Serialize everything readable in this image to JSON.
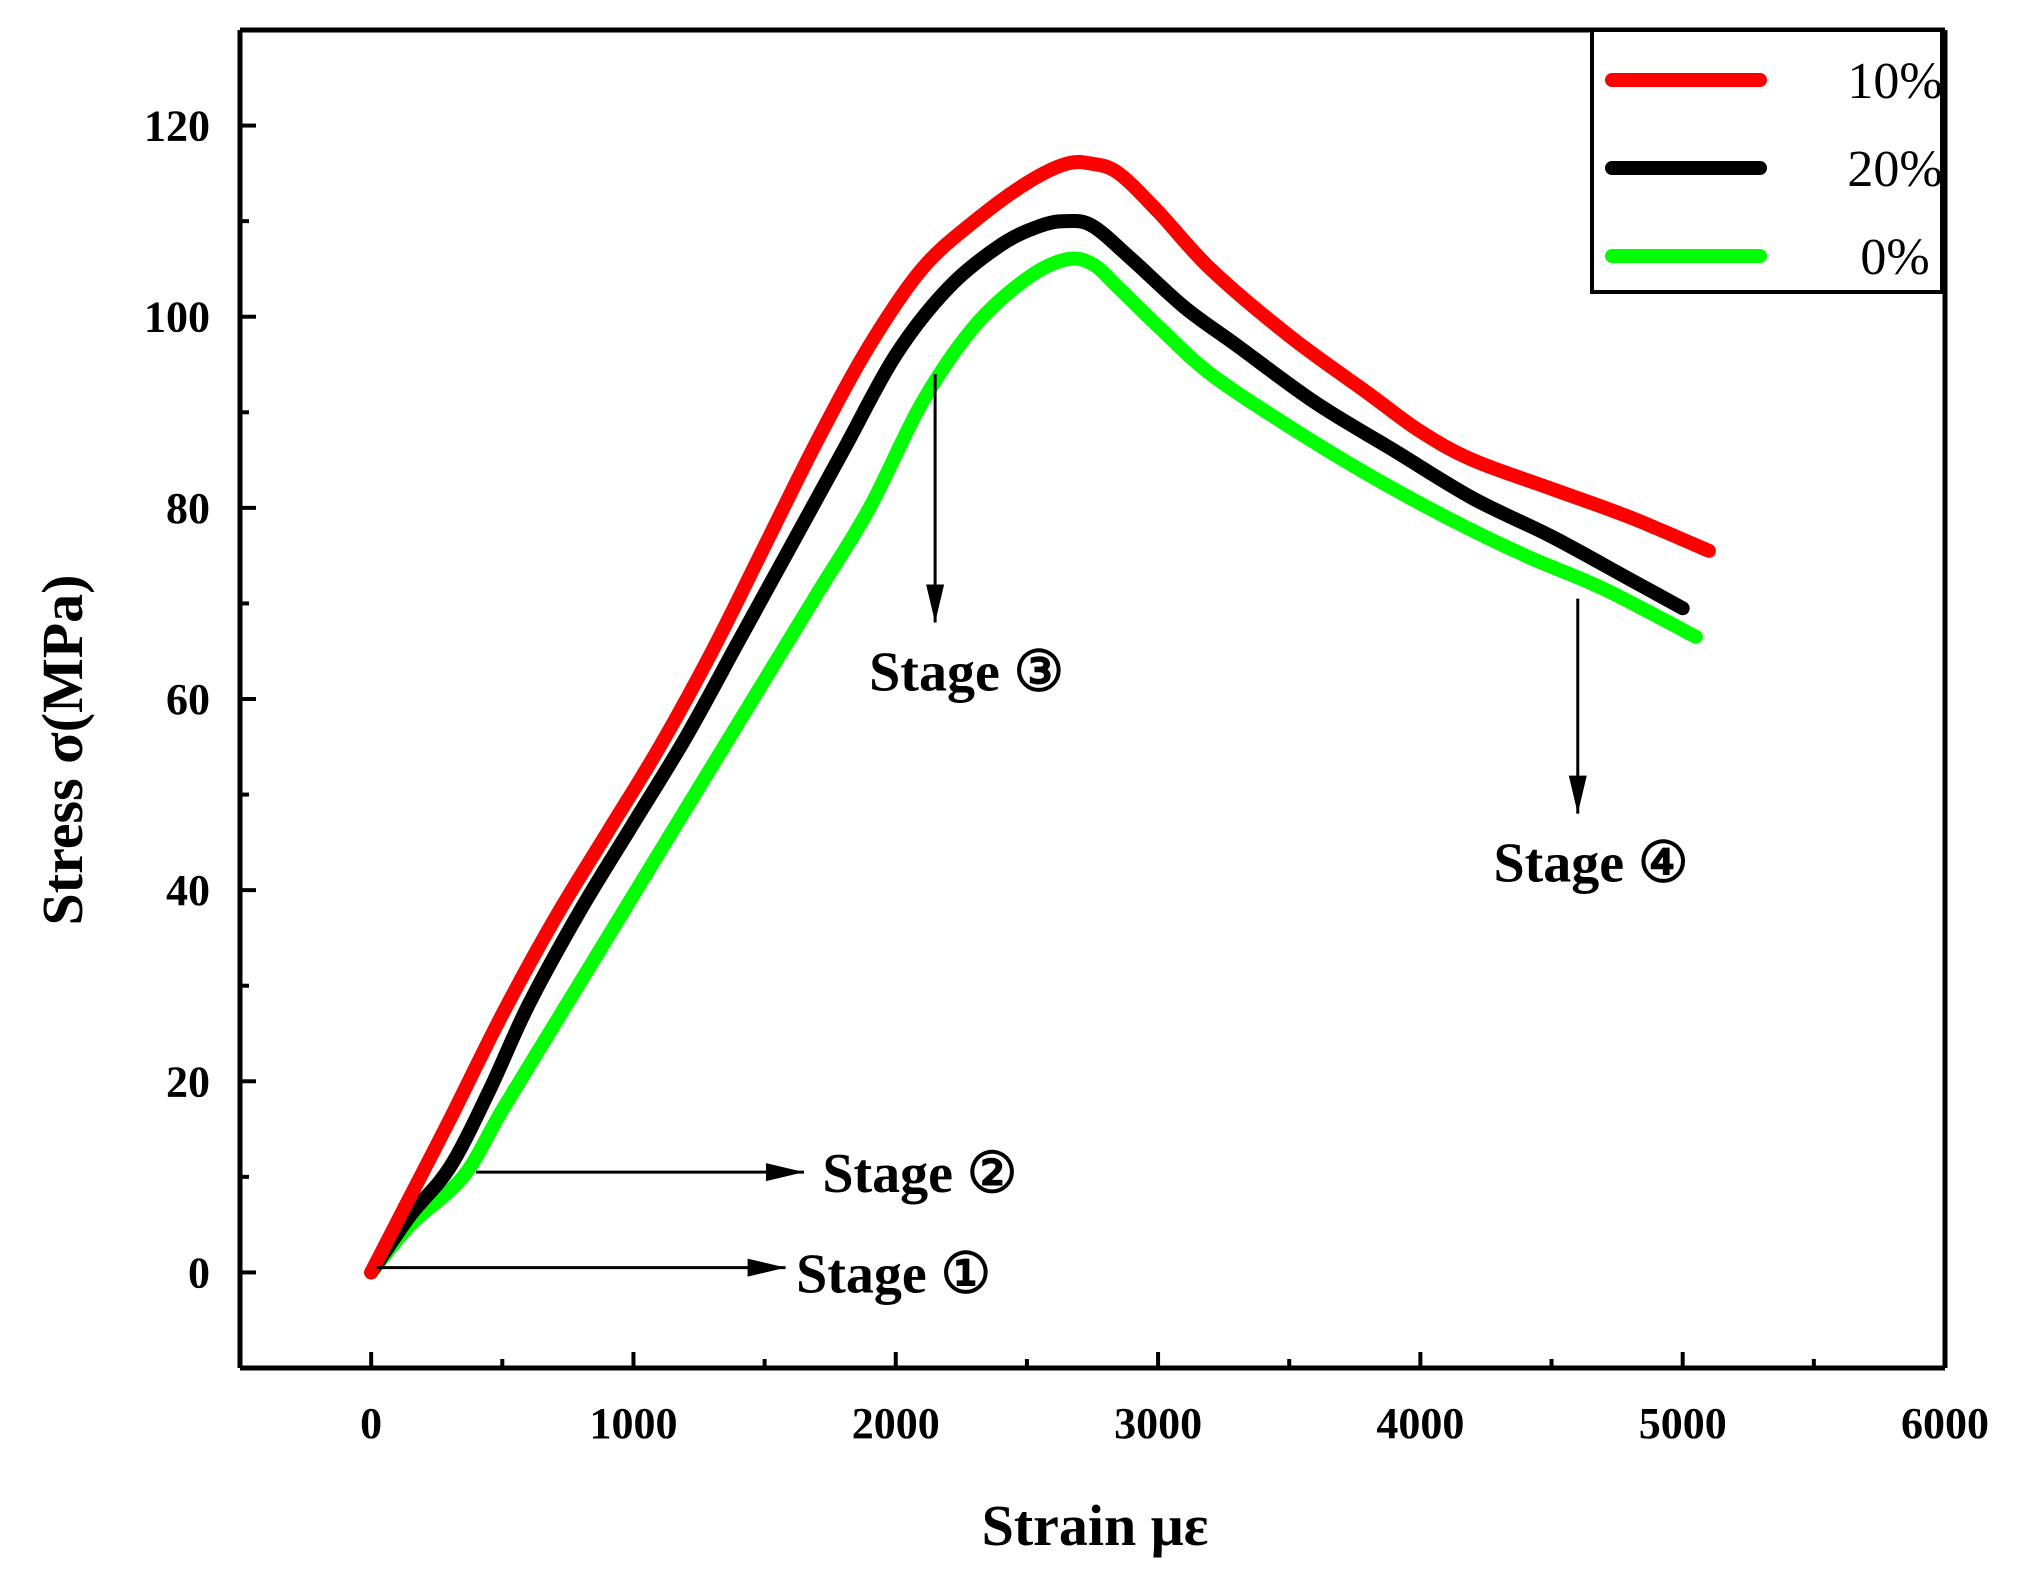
{
  "chart_data": {
    "type": "line",
    "title": "",
    "xlabel": "Strain με",
    "ylabel": "Stress σ(MPa)",
    "xlim": [
      -500,
      6000
    ],
    "ylim": [
      -10,
      130
    ],
    "xticks": [
      0,
      1000,
      2000,
      3000,
      4000,
      5000,
      6000
    ],
    "yticks": [
      0,
      20,
      40,
      60,
      80,
      100,
      120
    ],
    "grid": false,
    "legend_position": "top-right",
    "series": [
      {
        "name": "10%",
        "color": "#ff0000",
        "x": [
          0,
          150,
          300,
          500,
          700,
          900,
          1100,
          1300,
          1500,
          1700,
          1900,
          2100,
          2300,
          2500,
          2650,
          2750,
          2850,
          3000,
          3200,
          3500,
          3800,
          4000,
          4200,
          4500,
          4800,
          5100
        ],
        "y": [
          0,
          8,
          16,
          27,
          37,
          46,
          55,
          65,
          76,
          87,
          97,
          105,
          110,
          114,
          116,
          116,
          115,
          111,
          105,
          98,
          92,
          88,
          85,
          82,
          79,
          75.5
        ]
      },
      {
        "name": "20%",
        "color": "#000000",
        "x": [
          0,
          150,
          300,
          450,
          600,
          800,
          1000,
          1200,
          1400,
          1600,
          1800,
          2000,
          2200,
          2400,
          2550,
          2650,
          2750,
          2900,
          3100,
          3300,
          3600,
          3900,
          4200,
          4500,
          4800,
          5000
        ],
        "y": [
          0,
          6,
          11,
          19,
          28,
          38,
          47,
          56,
          66,
          76,
          86,
          96,
          103,
          107.5,
          109.5,
          110,
          109.5,
          106,
          101,
          97,
          91,
          86,
          81,
          77,
          72.5,
          69.5
        ]
      },
      {
        "name": "0%",
        "color": "#00ff00",
        "x": [
          0,
          150,
          350,
          500,
          700,
          900,
          1100,
          1300,
          1500,
          1700,
          1900,
          2100,
          2300,
          2500,
          2650,
          2750,
          2850,
          3000,
          3200,
          3500,
          3800,
          4100,
          4400,
          4700,
          5050
        ],
        "y": [
          0,
          5,
          10,
          17,
          26,
          35,
          44,
          53,
          62,
          71,
          80,
          91,
          99,
          104,
          106,
          105.5,
          103,
          99,
          94,
          88.5,
          83.5,
          79,
          75,
          71.5,
          66.5
        ]
      }
    ],
    "annotations": [
      {
        "text": "Stage ①",
        "arrow_from": [
          20,
          0.5
        ],
        "arrow_to": [
          1580,
          0.5
        ],
        "direction": "right",
        "label_at": [
          1620,
          0
        ]
      },
      {
        "text": "Stage ②",
        "arrow_from": [
          400,
          10.5
        ],
        "arrow_to": [
          1650,
          10.5
        ],
        "direction": "right",
        "label_at": [
          1720,
          10.5
        ]
      },
      {
        "text": "Stage ③",
        "arrow_from": [
          2150,
          94
        ],
        "arrow_to": [
          2150,
          68
        ],
        "direction": "down",
        "label_at": [
          2270,
          63
        ]
      },
      {
        "text": "Stage ④",
        "arrow_from": [
          4600,
          70.5
        ],
        "arrow_to": [
          4600,
          48
        ],
        "direction": "down",
        "label_at": [
          4650,
          43
        ]
      }
    ]
  }
}
